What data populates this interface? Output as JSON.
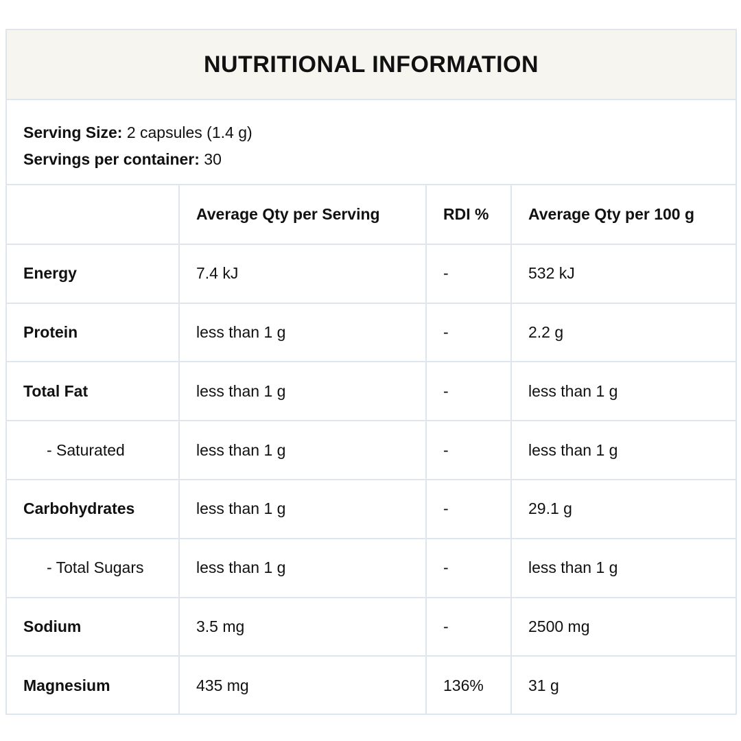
{
  "title": "NUTRITIONAL INFORMATION",
  "serving": {
    "size_label": "Serving Size:",
    "size_value": " 2 capsules (1.4 g)",
    "per_container_label": "Servings per container:",
    "per_container_value": " 30"
  },
  "table": {
    "headers": [
      "",
      "Average Qty per Serving",
      "RDI %",
      "Average Qty per 100 g"
    ],
    "rows": [
      {
        "name": "Energy",
        "per_serving": "7.4 kJ",
        "rdi": "-",
        "per_100g": "532 kJ"
      },
      {
        "name": "Protein",
        "per_serving": "less than 1 g",
        "rdi": "-",
        "per_100g": "2.2 g"
      },
      {
        "name": "Total Fat",
        "per_serving": "less than 1 g",
        "rdi": "-",
        "per_100g": "less than 1 g"
      },
      {
        "name": "- Saturated",
        "per_serving": "less than 1 g",
        "rdi": "-",
        "per_100g": "less than 1 g"
      },
      {
        "name": "Carbohydrates",
        "per_serving": "less than 1 g",
        "rdi": "-",
        "per_100g": "29.1 g"
      },
      {
        "name": "- Total Sugars",
        "per_serving": "less than 1 g",
        "rdi": "-",
        "per_100g": "less than 1 g"
      },
      {
        "name": "Sodium",
        "per_serving": "3.5 mg",
        "rdi": "-",
        "per_100g": "2500 mg"
      },
      {
        "name": "Magnesium",
        "per_serving": "435 mg",
        "rdi": "136%",
        "per_100g": "31 g"
      }
    ]
  }
}
